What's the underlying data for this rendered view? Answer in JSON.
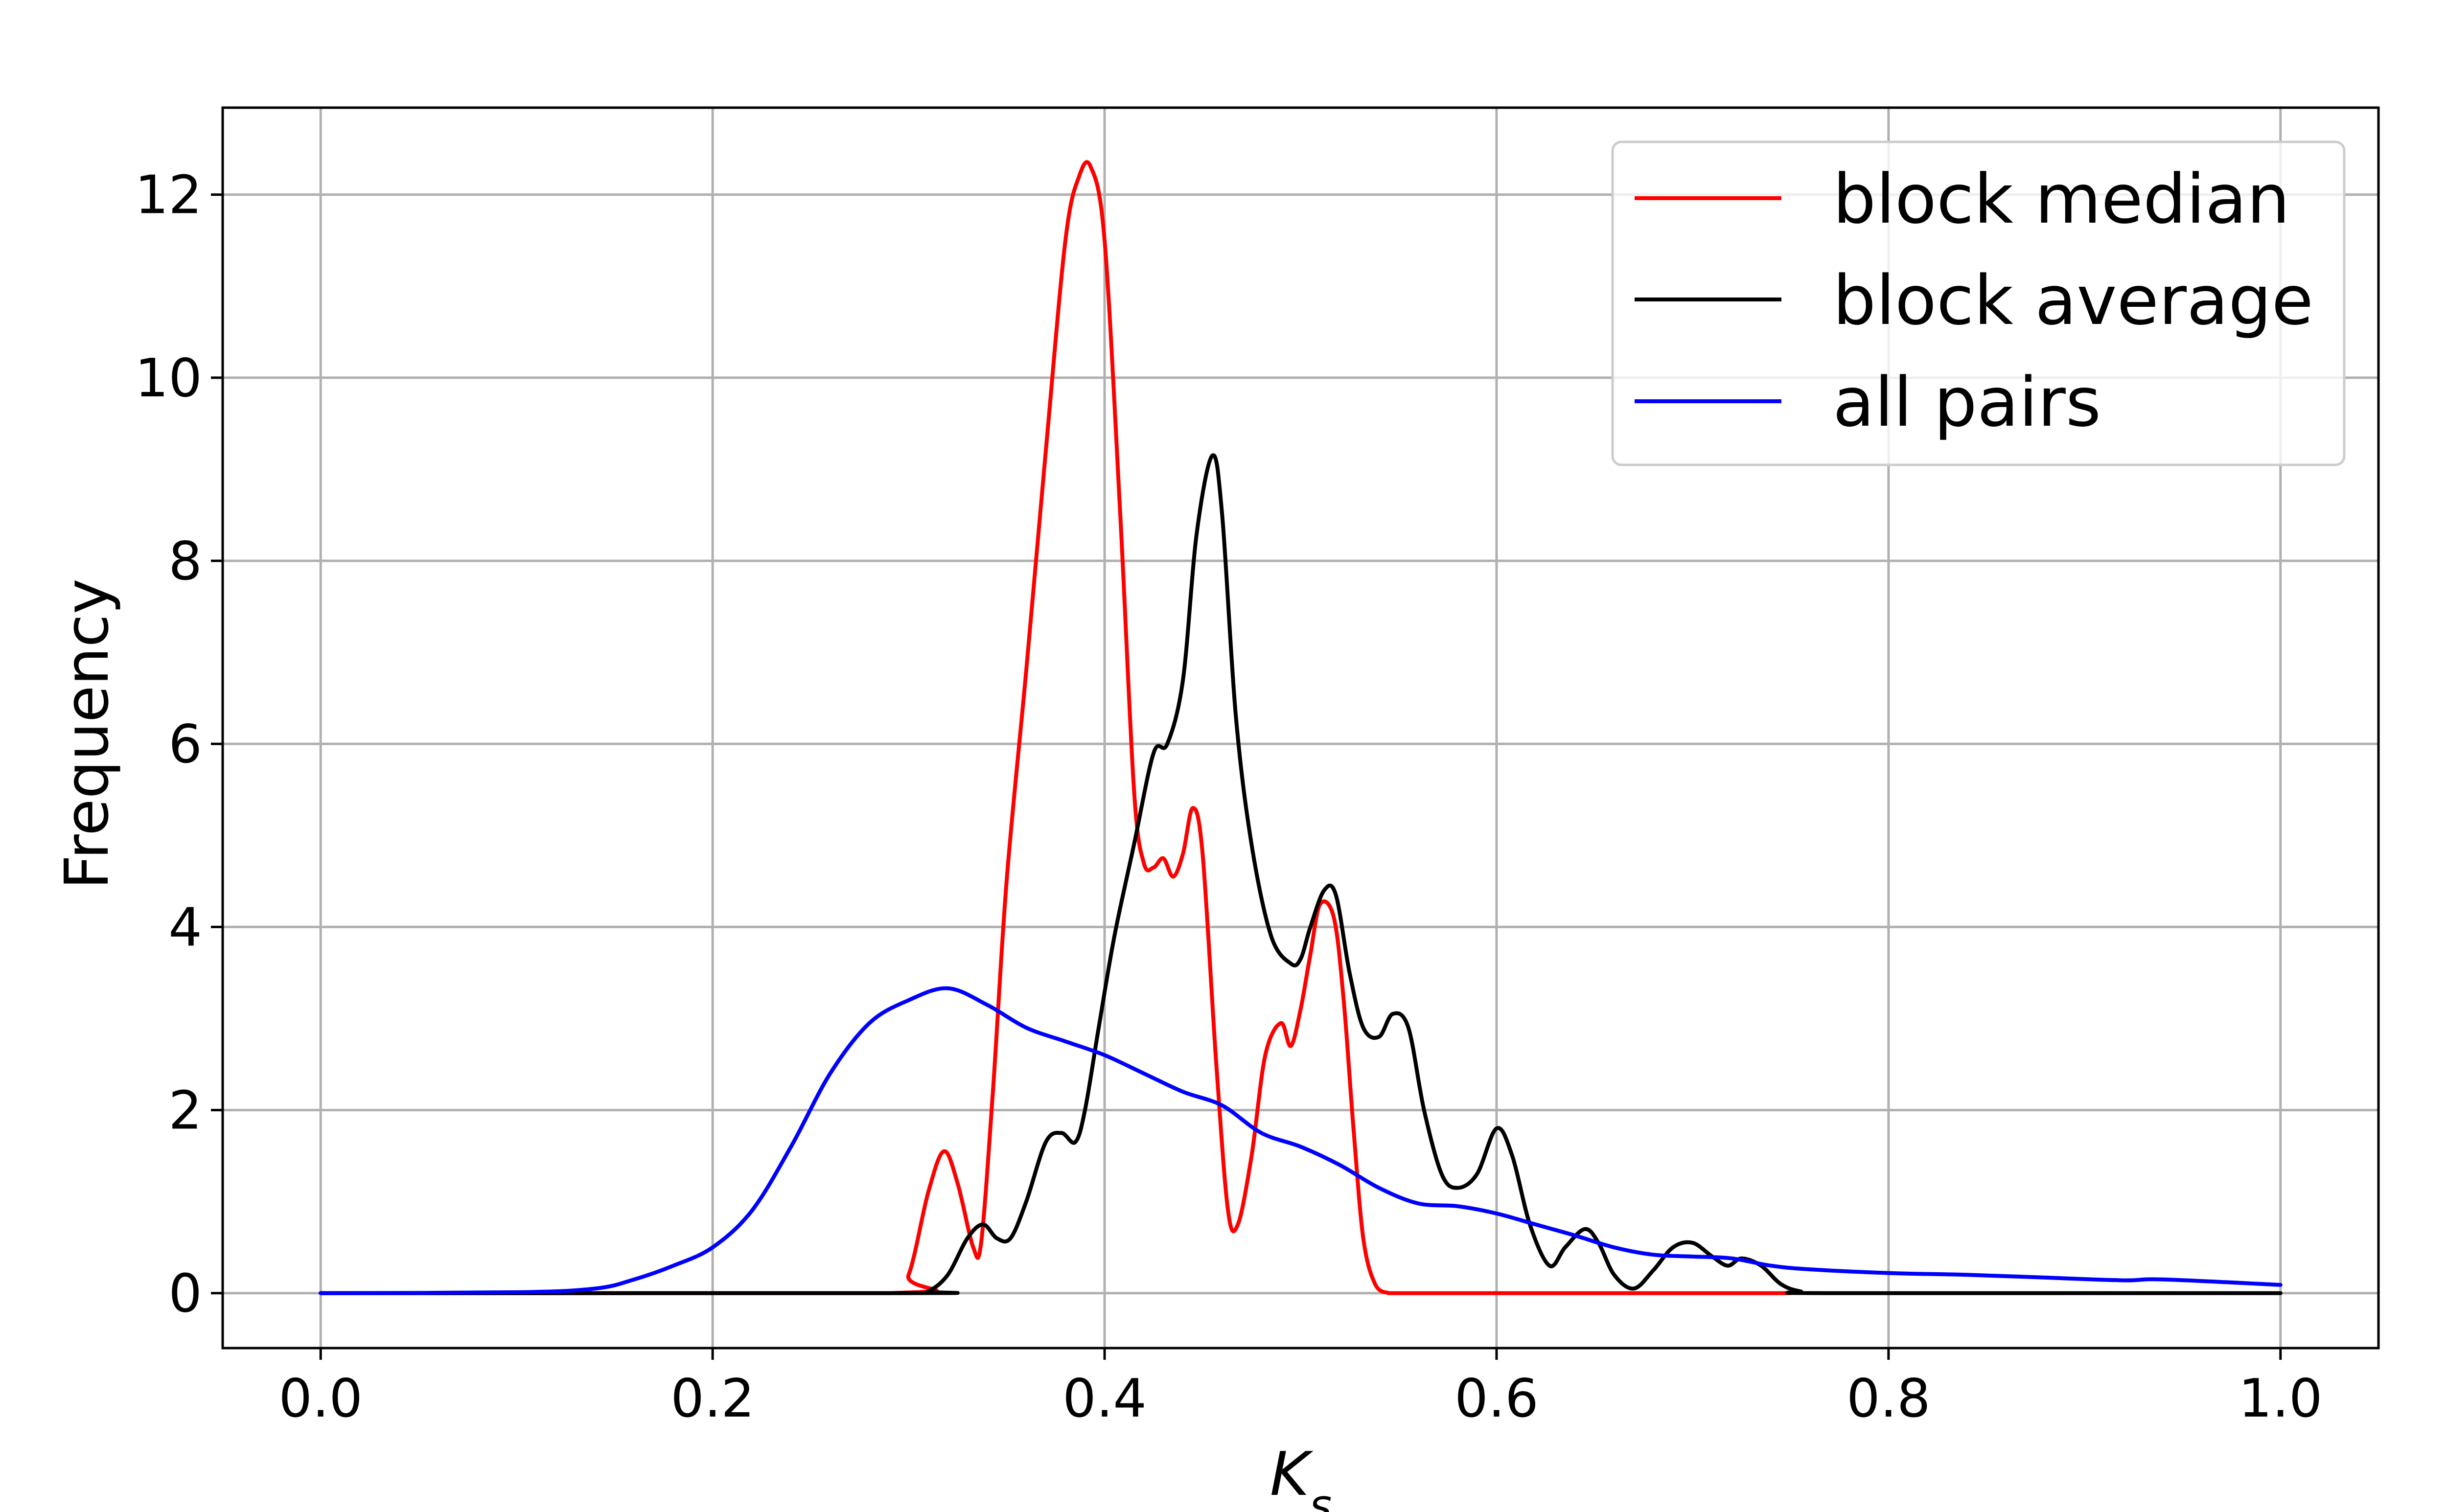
{
  "chart_data": {
    "type": "line",
    "title": "",
    "xlabel": "K_s",
    "ylabel": "Frequency",
    "xlim": [
      -0.05,
      1.05
    ],
    "ylim": [
      -0.6,
      12.95
    ],
    "x_ticks": [
      0.0,
      0.2,
      0.4,
      0.6,
      0.8,
      1.0
    ],
    "x_tick_labels": [
      "0.0",
      "0.2",
      "0.4",
      "0.6",
      "0.8",
      "1.0"
    ],
    "y_ticks": [
      0,
      2,
      4,
      6,
      8,
      10,
      12
    ],
    "y_tick_labels": [
      "0",
      "2",
      "4",
      "6",
      "8",
      "10",
      "12"
    ],
    "grid": true,
    "legend_position": "top-right",
    "series": [
      {
        "name": "block median",
        "color": "#ff0000",
        "x": [
          0.0,
          0.29,
          0.3,
          0.31,
          0.318,
          0.325,
          0.333,
          0.337,
          0.343,
          0.35,
          0.36,
          0.37,
          0.38,
          0.387,
          0.393,
          0.4,
          0.408,
          0.415,
          0.42,
          0.425,
          0.43,
          0.435,
          0.44,
          0.445,
          0.45,
          0.457,
          0.463,
          0.468,
          0.475,
          0.482,
          0.49,
          0.495,
          0.5,
          0.505,
          0.51,
          0.517,
          0.522,
          0.527,
          0.532,
          0.538,
          0.545,
          0.55,
          0.6,
          0.75
        ],
        "y": [
          0,
          0,
          0.2,
          1.1,
          1.55,
          1.2,
          0.5,
          0.55,
          2.2,
          4.5,
          6.8,
          9.2,
          11.5,
          12.2,
          12.3,
          11.5,
          8.5,
          5.5,
          4.7,
          4.65,
          4.75,
          4.55,
          4.8,
          5.3,
          4.8,
          2.5,
          0.9,
          0.75,
          1.5,
          2.6,
          2.95,
          2.7,
          3.1,
          3.7,
          4.25,
          4.1,
          3.2,
          1.8,
          0.6,
          0.1,
          0,
          0,
          0,
          0
        ]
      },
      {
        "name": "block average",
        "color": "#000000",
        "x": [
          0.0,
          0.3,
          0.31,
          0.32,
          0.33,
          0.338,
          0.345,
          0.352,
          0.36,
          0.37,
          0.378,
          0.385,
          0.39,
          0.397,
          0.405,
          0.415,
          0.425,
          0.432,
          0.44,
          0.447,
          0.455,
          0.46,
          0.467,
          0.475,
          0.485,
          0.495,
          0.5,
          0.505,
          0.512,
          0.518,
          0.525,
          0.532,
          0.54,
          0.547,
          0.555,
          0.563,
          0.572,
          0.58,
          0.59,
          0.6,
          0.608,
          0.617,
          0.627,
          0.635,
          0.645,
          0.652,
          0.66,
          0.67,
          0.68,
          0.69,
          0.7,
          0.71,
          0.718,
          0.725,
          0.735,
          0.745,
          0.755,
          0.77,
          1.0
        ],
        "y": [
          0,
          0,
          0.02,
          0.2,
          0.6,
          0.75,
          0.6,
          0.6,
          1.0,
          1.65,
          1.75,
          1.65,
          2.0,
          2.9,
          3.9,
          4.9,
          5.9,
          6.0,
          6.7,
          8.3,
          9.15,
          8.5,
          6.3,
          4.9,
          3.9,
          3.6,
          3.65,
          4.0,
          4.4,
          4.35,
          3.5,
          2.9,
          2.8,
          3.05,
          2.9,
          2.0,
          1.3,
          1.15,
          1.3,
          1.8,
          1.5,
          0.75,
          0.3,
          0.5,
          0.7,
          0.55,
          0.2,
          0.05,
          0.25,
          0.5,
          0.55,
          0.4,
          0.3,
          0.38,
          0.3,
          0.1,
          0.02,
          0,
          0
        ]
      },
      {
        "name": "all pairs",
        "color": "#0000ff",
        "x": [
          0.0,
          0.1,
          0.14,
          0.16,
          0.18,
          0.2,
          0.22,
          0.24,
          0.26,
          0.28,
          0.3,
          0.32,
          0.34,
          0.36,
          0.38,
          0.4,
          0.42,
          0.44,
          0.46,
          0.48,
          0.5,
          0.52,
          0.54,
          0.56,
          0.58,
          0.6,
          0.62,
          0.64,
          0.66,
          0.68,
          0.7,
          0.72,
          0.74,
          0.76,
          0.8,
          0.84,
          0.88,
          0.92,
          0.94,
          1.0
        ],
        "y": [
          0,
          0.01,
          0.05,
          0.15,
          0.3,
          0.5,
          0.9,
          1.6,
          2.4,
          2.95,
          3.2,
          3.33,
          3.15,
          2.9,
          2.75,
          2.6,
          2.4,
          2.2,
          2.05,
          1.75,
          1.6,
          1.4,
          1.15,
          0.98,
          0.95,
          0.87,
          0.75,
          0.63,
          0.5,
          0.42,
          0.4,
          0.38,
          0.3,
          0.26,
          0.22,
          0.2,
          0.17,
          0.14,
          0.15,
          0.09
        ]
      }
    ]
  }
}
